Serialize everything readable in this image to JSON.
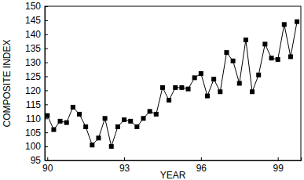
{
  "chart_data": {
    "type": "line",
    "x_label": "YEAR",
    "y_label": "COMPOSITE INDEX",
    "x": [
      90,
      90.25,
      90.5,
      90.75,
      91,
      91.25,
      91.5,
      91.75,
      92,
      92.25,
      92.5,
      92.75,
      93,
      93.25,
      93.5,
      93.75,
      94,
      94.25,
      94.5,
      94.75,
      95,
      95.25,
      95.5,
      95.75,
      96,
      96.25,
      96.5,
      96.75,
      97,
      97.25,
      97.5,
      97.75,
      98,
      98.25,
      98.5,
      98.75,
      99,
      99.25,
      99.5,
      99.75
    ],
    "values": [
      111,
      106,
      109,
      108.5,
      114,
      111.5,
      107,
      100.5,
      103,
      110,
      100,
      107,
      109.5,
      109,
      107,
      110,
      112.5,
      111.5,
      121,
      116.5,
      121,
      121,
      120.5,
      124.5,
      126,
      118,
      124,
      119.5,
      133.5,
      130.5,
      122.5,
      138,
      119.5,
      125.5,
      136.5,
      131.5,
      131,
      143.5,
      132,
      144.5
    ],
    "color": "#000000",
    "marker": "square",
    "xlim": [
      89.9,
      99.9
    ],
    "xticks": [
      90,
      93,
      96,
      99
    ],
    "ylim": [
      95,
      150
    ],
    "yticks": [
      95,
      100,
      105,
      110,
      115,
      120,
      125,
      130,
      135,
      140,
      145,
      150
    ],
    "grid": false
  }
}
